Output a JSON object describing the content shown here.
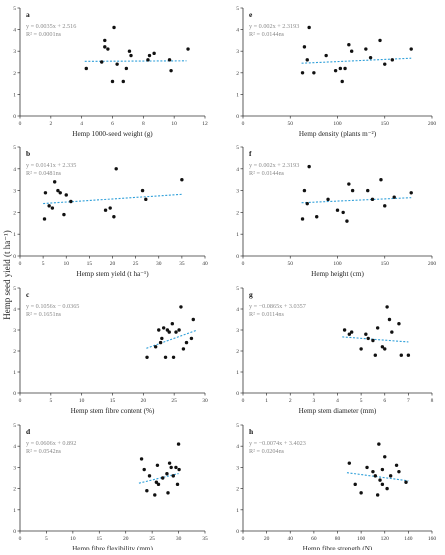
{
  "figure": {
    "shared_ylabel": "Hemp seed yield (t ha⁻¹)",
    "marker_color": "#111111",
    "trend_color": "#2e9fd9",
    "equation_color": "#8a8a8a",
    "axis_color": "#333333"
  },
  "chart_data": [
    {
      "panel": "a",
      "type": "scatter",
      "xlabel": "Hemp 1000-seed weight (g)",
      "xlim": [
        0,
        12
      ],
      "xticks": [
        0,
        2,
        4,
        6,
        8,
        10,
        12
      ],
      "ylim": [
        0,
        5
      ],
      "yticks": [
        0,
        1,
        2,
        3,
        4,
        5
      ],
      "equation": "y = 0.0035x + 2.516",
      "r2_text": "R² = 0.0001ns",
      "trend": {
        "slope": 0.0035,
        "intercept": 2.516,
        "x_range": [
          4.2,
          10.8
        ]
      },
      "points": [
        [
          4.3,
          2.2
        ],
        [
          5.3,
          2.5
        ],
        [
          5.5,
          3.5
        ],
        [
          5.5,
          3.2
        ],
        [
          5.7,
          3.1
        ],
        [
          6.0,
          1.6
        ],
        [
          6.1,
          4.1
        ],
        [
          6.3,
          2.4
        ],
        [
          6.7,
          1.6
        ],
        [
          6.9,
          2.2
        ],
        [
          7.1,
          3.0
        ],
        [
          7.2,
          2.8
        ],
        [
          8.3,
          2.6
        ],
        [
          8.4,
          2.8
        ],
        [
          8.7,
          2.9
        ],
        [
          9.7,
          2.6
        ],
        [
          9.8,
          2.1
        ],
        [
          10.9,
          3.1
        ]
      ]
    },
    {
      "panel": "e",
      "type": "scatter",
      "xlabel": "Hemp density (plants m⁻²)",
      "xlim": [
        0,
        200
      ],
      "xticks": [
        0,
        50,
        100,
        150,
        200
      ],
      "ylim": [
        0,
        5
      ],
      "yticks": [
        0,
        1,
        2,
        3,
        4,
        5
      ],
      "equation": "y = 0.002x + 2.3193",
      "r2_text": "R² = 0.0144ns",
      "trend": {
        "slope": 0.002,
        "intercept": 2.3193,
        "x_range": [
          62,
          178
        ]
      },
      "points": [
        [
          63,
          2.0
        ],
        [
          65,
          3.2
        ],
        [
          68,
          2.6
        ],
        [
          70,
          4.1
        ],
        [
          75,
          2.0
        ],
        [
          88,
          2.8
        ],
        [
          98,
          2.1
        ],
        [
          103,
          2.2
        ],
        [
          105,
          1.6
        ],
        [
          108,
          2.2
        ],
        [
          112,
          3.3
        ],
        [
          115,
          3.0
        ],
        [
          130,
          3.1
        ],
        [
          135,
          2.7
        ],
        [
          145,
          3.5
        ],
        [
          150,
          2.4
        ],
        [
          158,
          2.6
        ],
        [
          178,
          3.1
        ]
      ]
    },
    {
      "panel": "b",
      "type": "scatter",
      "xlabel": "Hemp stem yield (t ha⁻¹)",
      "xlim": [
        0,
        40
      ],
      "xticks": [
        0,
        5,
        10,
        15,
        20,
        25,
        30,
        35,
        40
      ],
      "ylim": [
        0,
        5
      ],
      "yticks": [
        0,
        1,
        2,
        3,
        4,
        5
      ],
      "equation": "y = 0.0141x + 2.335",
      "r2_text": "R² = 0.0481ns",
      "trend": {
        "slope": 0.0141,
        "intercept": 2.335,
        "x_range": [
          5,
          35
        ]
      },
      "points": [
        [
          5.3,
          1.7
        ],
        [
          5.5,
          2.9
        ],
        [
          6.3,
          2.3
        ],
        [
          7.0,
          2.2
        ],
        [
          7.5,
          3.4
        ],
        [
          8.2,
          3.0
        ],
        [
          8.7,
          2.9
        ],
        [
          9.5,
          1.9
        ],
        [
          10.0,
          2.8
        ],
        [
          11.0,
          2.5
        ],
        [
          18.5,
          2.1
        ],
        [
          19.5,
          2.2
        ],
        [
          20.3,
          1.8
        ],
        [
          20.8,
          4.0
        ],
        [
          26.5,
          3.0
        ],
        [
          27.2,
          2.6
        ],
        [
          35.0,
          3.5
        ]
      ]
    },
    {
      "panel": "f",
      "type": "scatter",
      "xlabel": "Hemp height (cm)",
      "xlim": [
        0,
        200
      ],
      "xticks": [
        0,
        50,
        100,
        150,
        200
      ],
      "ylim": [
        0,
        5
      ],
      "yticks": [
        0,
        1,
        2,
        3,
        4,
        5
      ],
      "equation": "y = 0.002x + 2.3193",
      "r2_text": "R² = 0.0144ns",
      "trend": {
        "slope": 0.002,
        "intercept": 2.3193,
        "x_range": [
          62,
          178
        ]
      },
      "points": [
        [
          63,
          1.7
        ],
        [
          65,
          3.0
        ],
        [
          68,
          2.4
        ],
        [
          70,
          4.1
        ],
        [
          78,
          1.8
        ],
        [
          90,
          2.6
        ],
        [
          100,
          2.1
        ],
        [
          106,
          2.0
        ],
        [
          110,
          1.6
        ],
        [
          112,
          3.3
        ],
        [
          116,
          3.0
        ],
        [
          132,
          3.0
        ],
        [
          137,
          2.6
        ],
        [
          146,
          3.5
        ],
        [
          150,
          2.3
        ],
        [
          160,
          2.7
        ],
        [
          178,
          2.9
        ]
      ]
    },
    {
      "panel": "c",
      "type": "scatter",
      "xlabel": "Hemp stem fibre content (%)",
      "xlim": [
        0,
        30
      ],
      "xticks": [
        0,
        5,
        10,
        15,
        20,
        25,
        30
      ],
      "ylim": [
        0,
        5
      ],
      "yticks": [
        0,
        1,
        2,
        3,
        4,
        5
      ],
      "equation": "y = 0.1056x − 0.0365",
      "r2_text": "R² = 0.1651ns",
      "trend": {
        "slope": 0.1056,
        "intercept": -0.0365,
        "x_range": [
          20.5,
          28.5
        ]
      },
      "points": [
        [
          20.6,
          1.7
        ],
        [
          22.0,
          2.2
        ],
        [
          22.5,
          3.0
        ],
        [
          22.8,
          2.4
        ],
        [
          23.0,
          2.6
        ],
        [
          23.3,
          3.1
        ],
        [
          23.6,
          1.7
        ],
        [
          23.9,
          3.0
        ],
        [
          24.2,
          2.9
        ],
        [
          24.7,
          3.3
        ],
        [
          24.9,
          1.7
        ],
        [
          25.3,
          2.9
        ],
        [
          25.8,
          3.0
        ],
        [
          26.1,
          4.1
        ],
        [
          26.5,
          2.1
        ],
        [
          27.0,
          2.4
        ],
        [
          27.8,
          2.6
        ],
        [
          28.1,
          3.5
        ]
      ]
    },
    {
      "panel": "g",
      "type": "scatter",
      "xlabel": "Hemp stem diameter (mm)",
      "xlim": [
        0,
        8
      ],
      "xticks": [
        0,
        1,
        2,
        3,
        4,
        5,
        6,
        7,
        8
      ],
      "ylim": [
        0,
        5
      ],
      "yticks": [
        0,
        1,
        2,
        3,
        4,
        5
      ],
      "equation": "y = −0.0865x + 3.0357",
      "r2_text": "R² = 0.0114ns",
      "trend": {
        "slope": -0.0865,
        "intercept": 3.0357,
        "x_range": [
          4.2,
          7.0
        ]
      },
      "points": [
        [
          4.3,
          3.0
        ],
        [
          4.5,
          2.8
        ],
        [
          4.6,
          2.9
        ],
        [
          5.0,
          2.1
        ],
        [
          5.2,
          2.8
        ],
        [
          5.3,
          2.6
        ],
        [
          5.5,
          2.5
        ],
        [
          5.6,
          1.8
        ],
        [
          5.7,
          3.1
        ],
        [
          5.9,
          2.2
        ],
        [
          6.0,
          2.1
        ],
        [
          6.1,
          4.1
        ],
        [
          6.2,
          3.5
        ],
        [
          6.3,
          2.9
        ],
        [
          6.6,
          3.3
        ],
        [
          6.7,
          1.8
        ],
        [
          7.0,
          1.8
        ]
      ]
    },
    {
      "panel": "d",
      "type": "scatter",
      "xlabel": "Hemp fibre flexibility (mm)",
      "xlim": [
        0,
        35
      ],
      "xticks": [
        0,
        5,
        10,
        15,
        20,
        25,
        30,
        35
      ],
      "ylim": [
        0,
        5
      ],
      "yticks": [
        0,
        1,
        2,
        3,
        4,
        5
      ],
      "equation": "y = 0.0606x + 0.892",
      "r2_text": "R² = 0.0542ns",
      "trend": {
        "slope": 0.0606,
        "intercept": 0.892,
        "x_range": [
          22.5,
          30
        ]
      },
      "points": [
        [
          23.0,
          3.4
        ],
        [
          23.5,
          2.9
        ],
        [
          24.0,
          1.9
        ],
        [
          24.5,
          2.6
        ],
        [
          25.5,
          1.7
        ],
        [
          25.8,
          2.3
        ],
        [
          26.0,
          3.1
        ],
        [
          26.2,
          2.2
        ],
        [
          27.0,
          2.5
        ],
        [
          27.8,
          2.7
        ],
        [
          28.0,
          1.8
        ],
        [
          28.3,
          3.2
        ],
        [
          28.6,
          3.0
        ],
        [
          29.0,
          2.6
        ],
        [
          29.5,
          3.0
        ],
        [
          29.8,
          2.2
        ],
        [
          30.0,
          4.1
        ],
        [
          30.1,
          2.9
        ]
      ]
    },
    {
      "panel": "h",
      "type": "scatter",
      "xlabel": "Hemp fibre strength (N)",
      "xlim": [
        0,
        160
      ],
      "xticks": [
        0,
        20,
        40,
        60,
        80,
        100,
        120,
        140,
        160
      ],
      "ylim": [
        0,
        5
      ],
      "yticks": [
        0,
        1,
        2,
        3,
        4,
        5
      ],
      "equation": "y = −0.0074x + 3.4023",
      "r2_text": "R² = 0.0204ns",
      "trend": {
        "slope": -0.0074,
        "intercept": 3.4023,
        "x_range": [
          88,
          140
        ]
      },
      "points": [
        [
          90,
          3.2
        ],
        [
          95,
          2.2
        ],
        [
          100,
          1.8
        ],
        [
          105,
          3.0
        ],
        [
          110,
          2.8
        ],
        [
          112,
          2.6
        ],
        [
          114,
          1.7
        ],
        [
          115,
          4.1
        ],
        [
          116,
          2.4
        ],
        [
          118,
          2.9
        ],
        [
          118,
          2.2
        ],
        [
          120,
          3.5
        ],
        [
          122,
          2.0
        ],
        [
          125,
          2.6
        ],
        [
          130,
          3.1
        ],
        [
          132,
          2.8
        ],
        [
          138,
          2.3
        ]
      ]
    }
  ]
}
